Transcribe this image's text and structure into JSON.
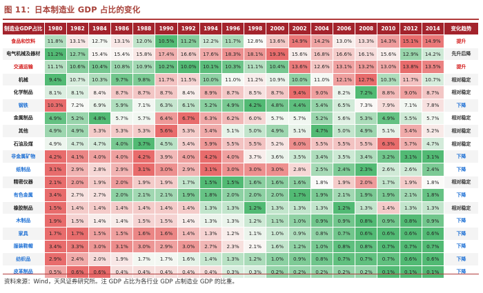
{
  "title": "图 11：日本制造业 GDP 占比的变化",
  "header": {
    "first": "制造业GDP占比",
    "years": [
      "1980",
      "1982",
      "1984",
      "1986",
      "1988",
      "1990",
      "1992",
      "1994",
      "1996",
      "1998",
      "2000",
      "2002",
      "2004",
      "2006",
      "2008",
      "2010",
      "2012",
      "2014"
    ],
    "last": "变化趋势"
  },
  "rows": [
    {
      "name": "食品和饮料",
      "name_color": "red",
      "values": [
        "11.8%",
        "13.1%",
        "12.7%",
        "13.1%",
        "12.0%",
        "10.5%",
        "11.2%",
        "12.2%",
        "11.7%",
        "12.8%",
        "13.6%",
        "14.9%",
        "14.2%",
        "13.0%",
        "13.3%",
        "14.3%",
        "15.1%",
        "14.9%"
      ],
      "trend": "提升",
      "trend_color": "red"
    },
    {
      "name": "电气机械及器材",
      "name_color": "dark",
      "values": [
        "11.2%",
        "12.7%",
        "15.4%",
        "15.4%",
        "15.8%",
        "17.4%",
        "16.6%",
        "17.6%",
        "18.3%",
        "18.1%",
        "19.3%",
        "15.6%",
        "16.8%",
        "16.6%",
        "16.1%",
        "15.6%",
        "12.9%",
        "14.2%"
      ],
      "trend": "先升后降",
      "trend_color": "dark"
    },
    {
      "name": "交通运输",
      "name_color": "red",
      "values": [
        "11.1%",
        "10.6%",
        "10.4%",
        "10.8%",
        "10.9%",
        "10.2%",
        "10.0%",
        "10.1%",
        "10.3%",
        "11.1%",
        "10.4%",
        "13.6%",
        "12.6%",
        "13.1%",
        "13.2%",
        "13.0%",
        "13.8%",
        "13.5%"
      ],
      "trend": "提升",
      "trend_color": "red"
    },
    {
      "name": "机械",
      "name_color": "dark",
      "values": [
        "9.4%",
        "10.7%",
        "10.3%",
        "9.7%",
        "9.8%",
        "11.7%",
        "11.5%",
        "10.0%",
        "11.0%",
        "11.2%",
        "10.9%",
        "10.0%",
        "11.0%",
        "12.1%",
        "12.7%",
        "10.3%",
        "11.7%",
        "10.7%"
      ],
      "trend": "相对稳定",
      "trend_color": "dark"
    },
    {
      "name": "化学制品",
      "name_color": "dark",
      "values": [
        "8.1%",
        "8.1%",
        "8.4%",
        "8.7%",
        "8.7%",
        "8.7%",
        "8.4%",
        "8.9%",
        "8.7%",
        "8.5%",
        "8.7%",
        "9.4%",
        "9.0%",
        "8.2%",
        "7.2%",
        "8.8%",
        "9.0%",
        "8.7%"
      ],
      "trend": "相对稳定",
      "trend_color": "dark"
    },
    {
      "name": "钢铁",
      "name_color": "blue",
      "values": [
        "10.3%",
        "7.2%",
        "6.9%",
        "5.9%",
        "7.1%",
        "6.3%",
        "6.1%",
        "5.2%",
        "4.9%",
        "4.2%",
        "4.8%",
        "4.4%",
        "5.4%",
        "6.5%",
        "7.3%",
        "7.9%",
        "7.1%",
        "7.8%"
      ],
      "trend": "下降",
      "trend_color": "blue"
    },
    {
      "name": "金属制品",
      "name_color": "dark",
      "values": [
        "4.9%",
        "5.2%",
        "4.8%",
        "5.7%",
        "5.7%",
        "6.4%",
        "6.7%",
        "6.3%",
        "6.2%",
        "6.0%",
        "5.7%",
        "5.7%",
        "5.2%",
        "5.6%",
        "5.3%",
        "4.9%",
        "5.5%",
        "5.7%"
      ],
      "trend": "相对稳定",
      "trend_color": "dark"
    },
    {
      "name": "其他",
      "name_color": "dark",
      "values": [
        "4.9%",
        "4.9%",
        "5.3%",
        "5.3%",
        "5.3%",
        "5.6%",
        "5.3%",
        "5.4%",
        "5.1%",
        "5.0%",
        "4.9%",
        "5.1%",
        "4.7%",
        "5.0%",
        "4.9%",
        "5.1%",
        "5.4%",
        "5.2%"
      ],
      "trend": "相对稳定",
      "trend_color": "dark"
    },
    {
      "name": "石油及煤",
      "name_color": "dark",
      "values": [
        "4.9%",
        "4.7%",
        "4.7%",
        "4.0%",
        "3.7%",
        "4.5%",
        "5.4%",
        "5.9%",
        "5.5%",
        "5.5%",
        "5.2%",
        "6.0%",
        "5.5%",
        "5.5%",
        "5.5%",
        "6.3%",
        "5.7%",
        "4.7%"
      ],
      "trend": "相对稳定",
      "trend_color": "dark"
    },
    {
      "name": "非金属矿物",
      "name_color": "blue",
      "values": [
        "4.2%",
        "4.1%",
        "4.0%",
        "4.0%",
        "4.2%",
        "3.9%",
        "4.0%",
        "4.2%",
        "4.0%",
        "3.7%",
        "3.6%",
        "3.5%",
        "3.4%",
        "3.5%",
        "3.4%",
        "3.2%",
        "3.1%",
        "3.1%"
      ],
      "trend": "下降",
      "trend_color": "blue"
    },
    {
      "name": "纸制品",
      "name_color": "blue",
      "values": [
        "3.1%",
        "2.9%",
        "2.8%",
        "2.9%",
        "3.1%",
        "3.0%",
        "2.9%",
        "3.1%",
        "3.0%",
        "3.0%",
        "3.0%",
        "2.8%",
        "2.5%",
        "2.4%",
        "2.3%",
        "2.6%",
        "2.6%",
        "2.4%"
      ],
      "trend": "下降",
      "trend_color": "blue"
    },
    {
      "name": "精密仪器",
      "name_color": "dark",
      "values": [
        "2.1%",
        "2.0%",
        "1.9%",
        "2.0%",
        "1.9%",
        "1.9%",
        "1.7%",
        "1.5%",
        "1.5%",
        "1.6%",
        "1.6%",
        "1.6%",
        "1.8%",
        "1.9%",
        "2.0%",
        "1.7%",
        "1.9%",
        "1.8%"
      ],
      "trend": "相对稳定",
      "trend_color": "dark"
    },
    {
      "name": "有色金属",
      "name_color": "blue",
      "values": [
        "3.4%",
        "2.7%",
        "2.7%",
        "2.0%",
        "2.1%",
        "2.1%",
        "1.9%",
        "1.8%",
        "2.0%",
        "2.0%",
        "2.0%",
        "1.7%",
        "1.9%",
        "2.1%",
        "1.9%",
        "1.9%",
        "2.1%",
        "1.8%"
      ],
      "trend": "下降",
      "trend_color": "blue"
    },
    {
      "name": "橡胶制品",
      "name_color": "dark",
      "values": [
        "1.5%",
        "1.4%",
        "1.4%",
        "1.4%",
        "1.4%",
        "1.4%",
        "1.4%",
        "1.3%",
        "1.3%",
        "1.2%",
        "1.3%",
        "1.3%",
        "1.3%",
        "1.2%",
        "1.3%",
        "1.4%",
        "1.3%",
        "1.3%"
      ],
      "trend": "相对稳定",
      "trend_color": "dark"
    },
    {
      "name": "木制品",
      "name_color": "blue",
      "values": [
        "1.9%",
        "1.5%",
        "1.4%",
        "1.4%",
        "1.5%",
        "1.5%",
        "1.4%",
        "1.3%",
        "1.3%",
        "1.2%",
        "1.1%",
        "1.0%",
        "0.9%",
        "0.9%",
        "0.8%",
        "0.9%",
        "0.8%",
        "0.9%"
      ],
      "trend": "下降",
      "trend_color": "blue"
    },
    {
      "name": "家具",
      "name_color": "blue",
      "values": [
        "1.7%",
        "1.7%",
        "1.5%",
        "1.5%",
        "1.6%",
        "1.6%",
        "1.4%",
        "1.3%",
        "1.2%",
        "1.1%",
        "1.0%",
        "0.9%",
        "0.8%",
        "0.7%",
        "0.6%",
        "0.6%",
        "0.6%",
        "0.6%"
      ],
      "trend": "下降",
      "trend_color": "blue"
    },
    {
      "name": "服装鞋帽",
      "name_color": "blue",
      "values": [
        "3.4%",
        "3.3%",
        "3.0%",
        "3.1%",
        "3.0%",
        "2.9%",
        "3.0%",
        "2.7%",
        "2.3%",
        "2.1%",
        "1.6%",
        "1.2%",
        "1.0%",
        "0.8%",
        "0.8%",
        "0.7%",
        "0.7%",
        "0.7%"
      ],
      "trend": "下降",
      "trend_color": "blue"
    },
    {
      "name": "纺织品",
      "name_color": "blue",
      "values": [
        "2.9%",
        "2.4%",
        "2.0%",
        "1.9%",
        "1.7%",
        "1.7%",
        "1.6%",
        "1.4%",
        "1.3%",
        "1.2%",
        "1.0%",
        "0.9%",
        "0.8%",
        "0.7%",
        "0.7%",
        "0.7%",
        "0.6%",
        "0.6%"
      ],
      "trend": "下降",
      "trend_color": "blue"
    },
    {
      "name": "皮革制品",
      "name_color": "blue",
      "values": [
        "0.5%",
        "0.6%",
        "0.6%",
        "0.4%",
        "0.4%",
        "0.4%",
        "0.4%",
        "0.4%",
        "0.3%",
        "0.3%",
        "0.2%",
        "0.2%",
        "0.2%",
        "0.2%",
        "0.2%",
        "0.1%",
        "0.1%",
        "0.1%"
      ],
      "trend": "下降",
      "trend_color": "blue"
    }
  ],
  "footer": "资料来源：Wind，天风证券研究所。注 GDP 占比为各行业 GDP 占制造业 GDP 的比重。"
}
